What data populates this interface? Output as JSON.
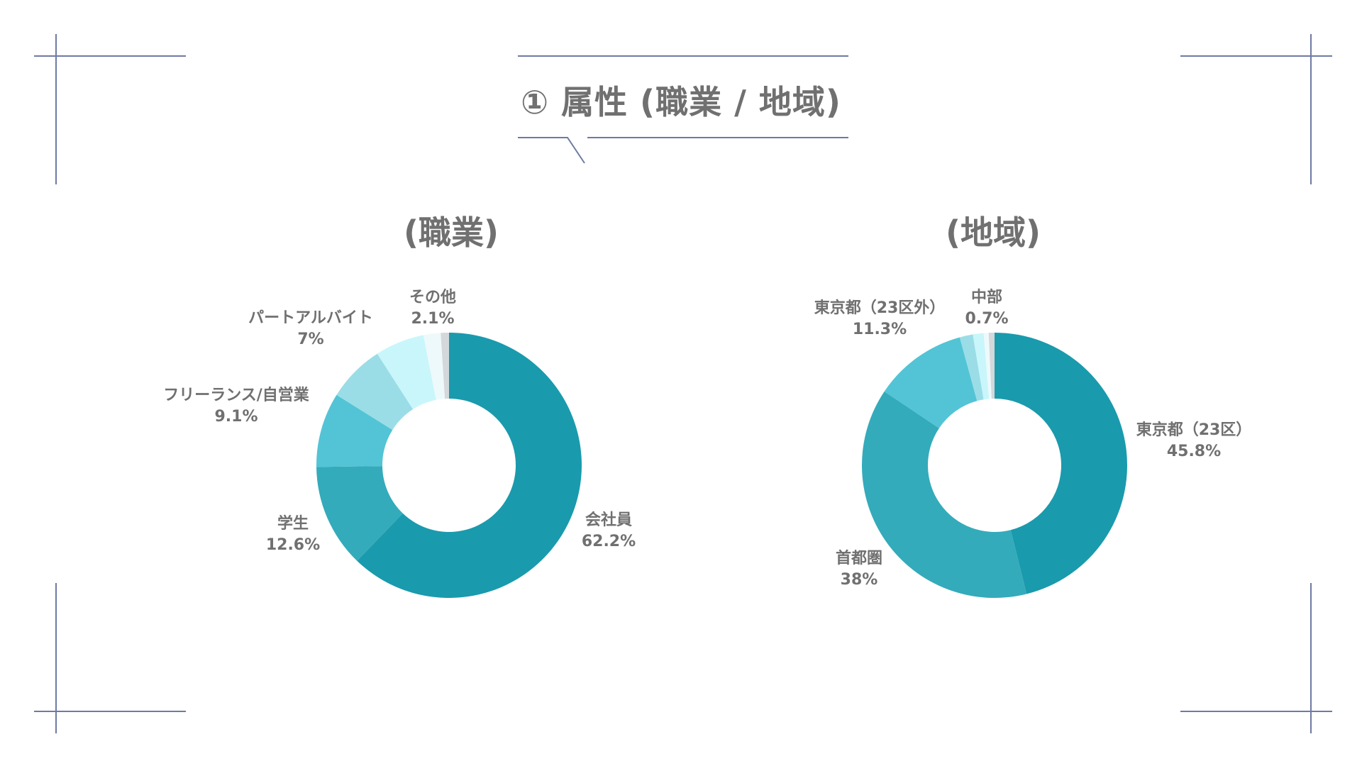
{
  "heading": {
    "title": "① 属性 (職業 / 地域)"
  },
  "colors": {
    "frame": "#6e7aa3",
    "text": "#707070"
  },
  "chart_data": [
    {
      "type": "pie",
      "title": "(職業)",
      "unit": "%",
      "slices": [
        {
          "name": "会社員",
          "value": 62.2,
          "value_label": "62.2%",
          "color": "#1a9aad"
        },
        {
          "name": "学生",
          "value": 12.6,
          "value_label": "12.6%",
          "color": "#33abbb"
        },
        {
          "name": "フリーランス/自営業",
          "value": 9.1,
          "value_label": "9.1%",
          "color": "#52c4d5"
        },
        {
          "name": "パートアルバイト",
          "value": 7,
          "value_label": "7%",
          "color": "#9adde7"
        },
        {
          "name": "その他",
          "value": 2.1,
          "value_label": "2.1%",
          "color": "#eef9fb"
        }
      ],
      "unlabeled_slices": [
        {
          "value": 6.0,
          "color": "#c9f6fb"
        },
        {
          "value": 1.0,
          "color": "#d4d8da"
        }
      ]
    },
    {
      "type": "pie",
      "title": "(地域)",
      "unit": "%",
      "slices": [
        {
          "name": "東京都（23区）",
          "value": 45.8,
          "value_label": "45.8%",
          "color": "#1a9aad"
        },
        {
          "name": "首都圏",
          "value": 38,
          "value_label": "38%",
          "color": "#33abbb"
        },
        {
          "name": "東京都（23区外）",
          "value": 11.3,
          "value_label": "11.3%",
          "color": "#52c4d5"
        },
        {
          "name": "中部",
          "value": 0.7,
          "value_label": "0.7%",
          "color": "#d4d8da"
        }
      ],
      "unlabeled_slices": [
        {
          "value": 1.6,
          "color": "#9adde7"
        },
        {
          "value": 1.3,
          "color": "#c9f6fb"
        },
        {
          "value": 0.6,
          "color": "#eef9fb"
        }
      ]
    }
  ]
}
